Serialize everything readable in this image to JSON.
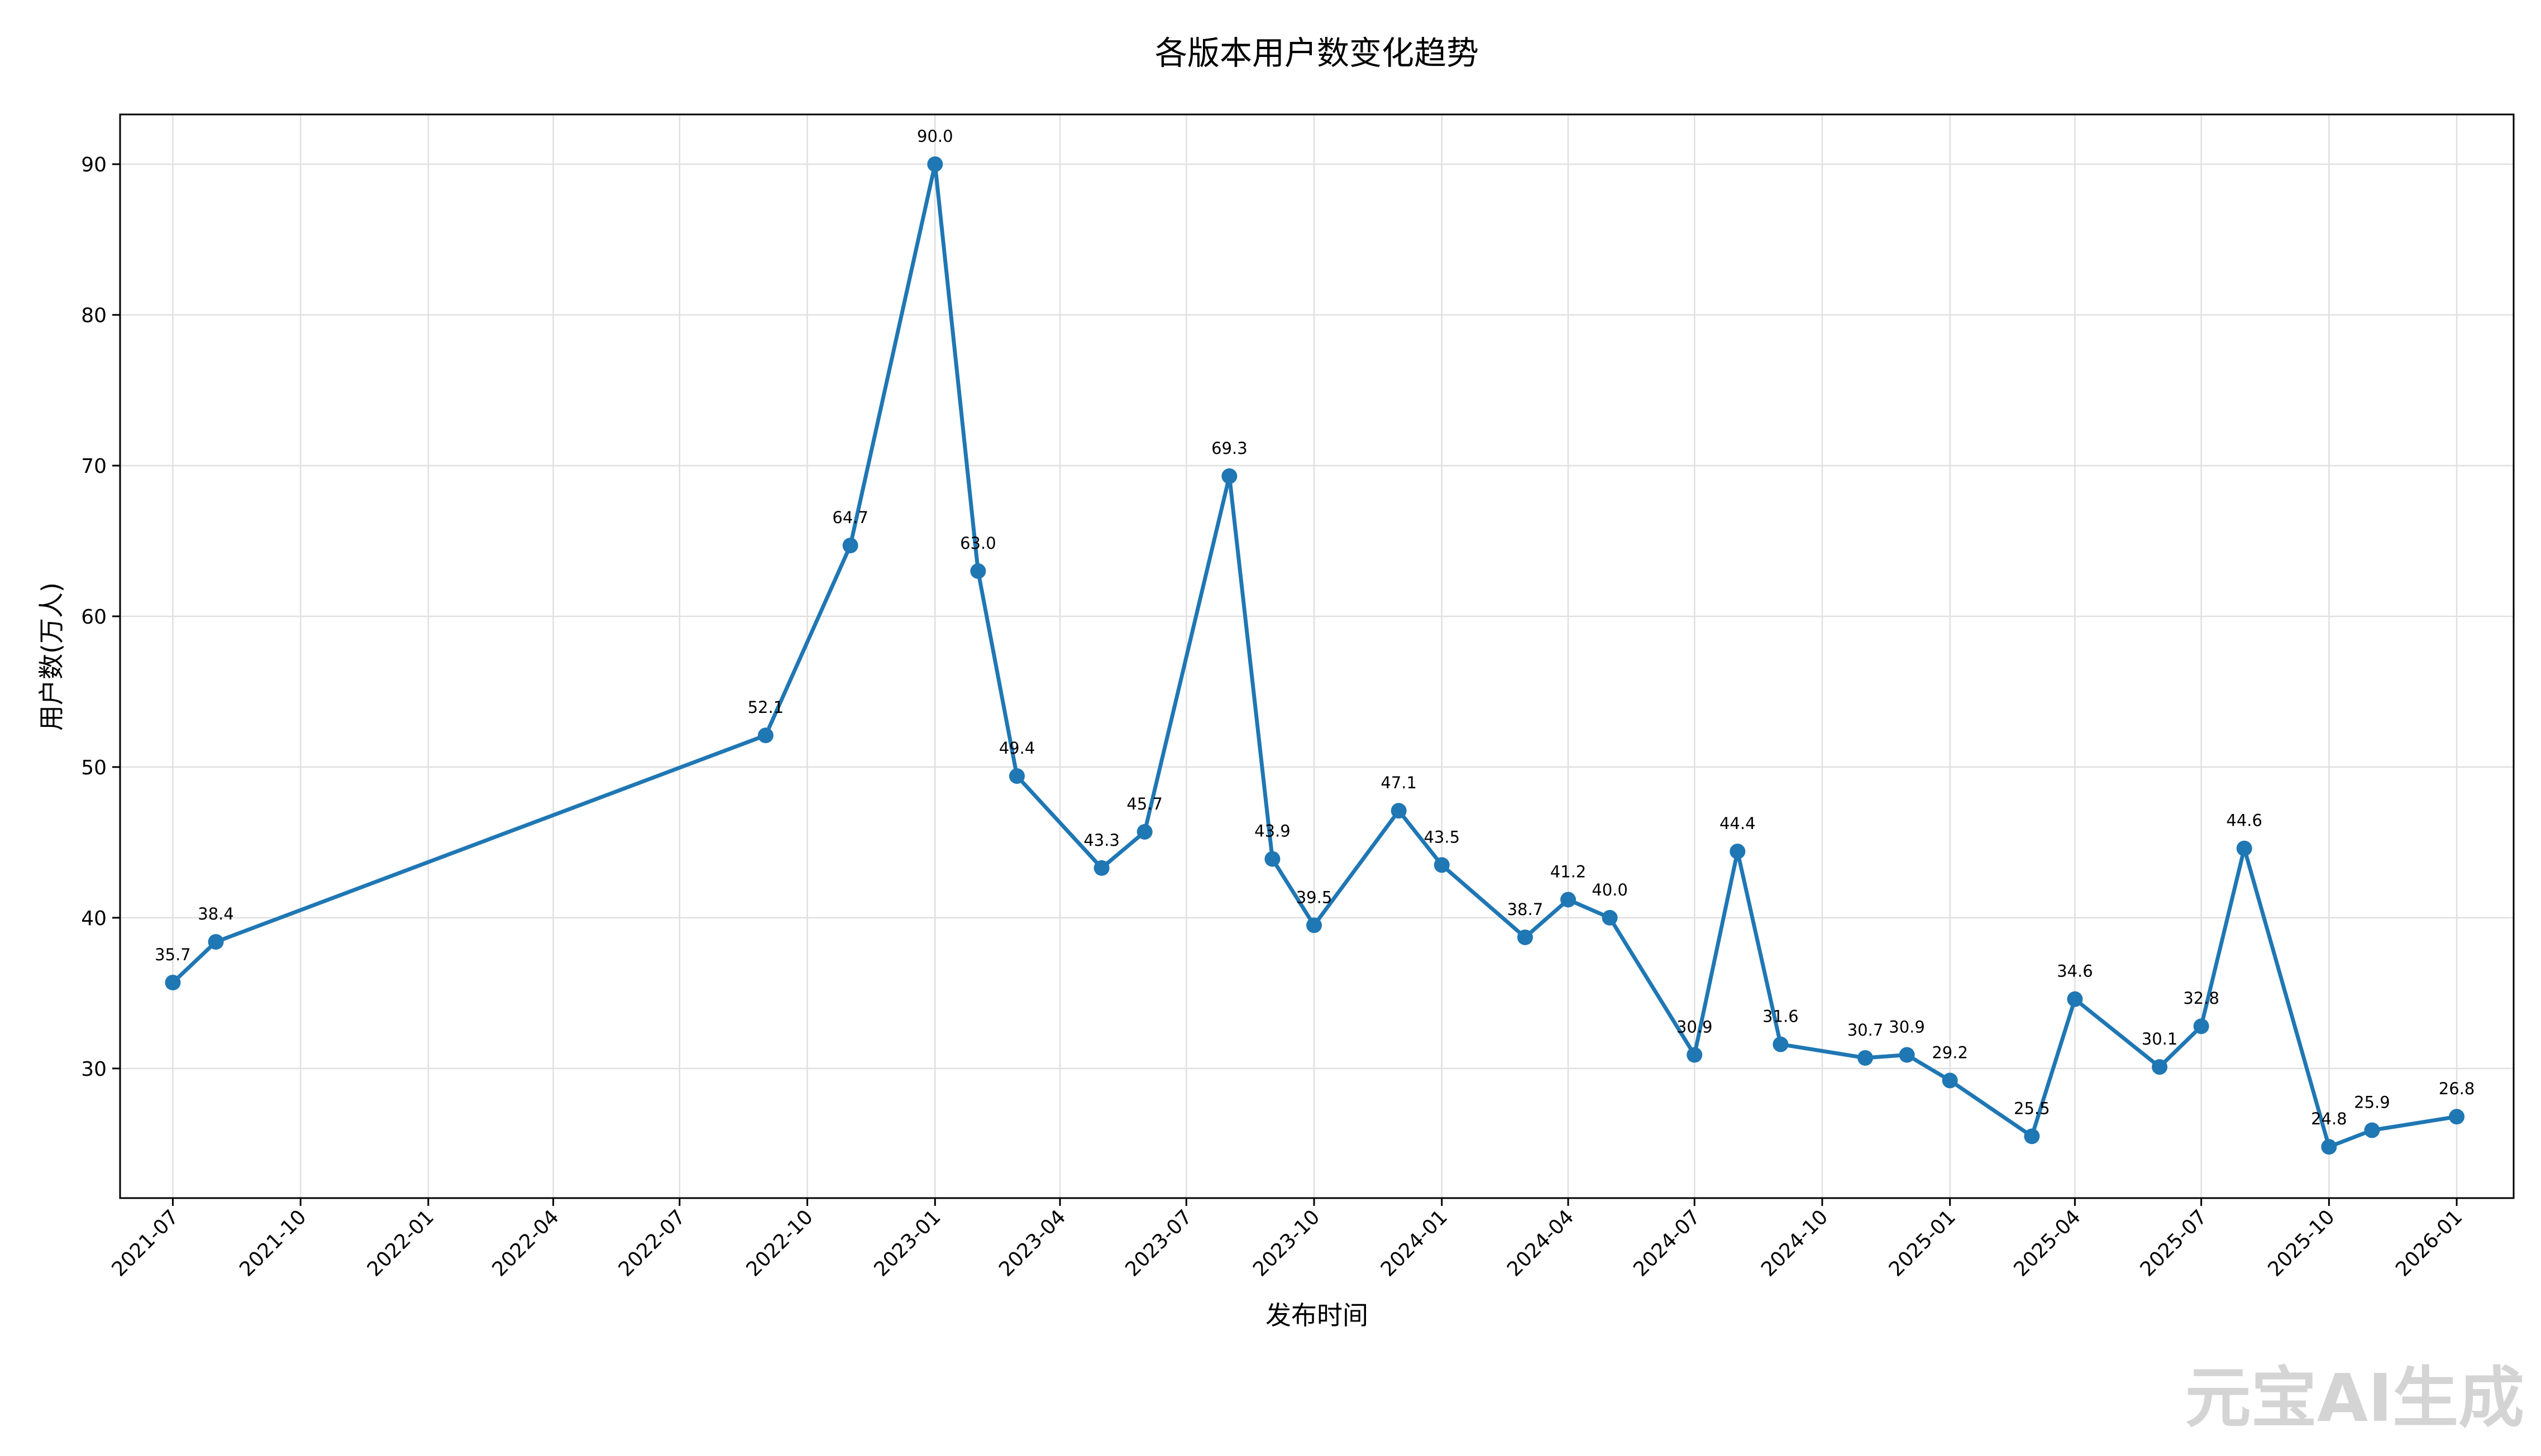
{
  "watermark": "元宝AI生成",
  "chart_data": {
    "type": "line",
    "title": "各版本用户数变化趋势",
    "xlabel": "发布时间",
    "ylabel": "用户数(万人)",
    "x_axis": "date",
    "xlim": [
      "2021-05-24",
      "2026-02-11"
    ],
    "ylim": [
      21.4,
      93.3
    ],
    "grid": true,
    "color": "#1f77b4",
    "x_ticks": [
      "2021-07",
      "2021-10",
      "2022-01",
      "2022-04",
      "2022-07",
      "2022-10",
      "2023-01",
      "2023-04",
      "2023-07",
      "2023-10",
      "2024-01",
      "2024-04",
      "2024-07",
      "2024-10",
      "2025-01",
      "2025-04",
      "2025-07",
      "2025-10",
      "2026-01"
    ],
    "y_ticks": [
      30,
      40,
      50,
      60,
      70,
      80,
      90
    ],
    "points": [
      {
        "x": "2021-07-01",
        "y": 35.7
      },
      {
        "x": "2021-08-01",
        "y": 38.4
      },
      {
        "x": "2022-09-01",
        "y": 52.1
      },
      {
        "x": "2022-11-01",
        "y": 64.7
      },
      {
        "x": "2023-01-01",
        "y": 90.0
      },
      {
        "x": "2023-02-01",
        "y": 63.0
      },
      {
        "x": "2023-03-01",
        "y": 49.4
      },
      {
        "x": "2023-05-01",
        "y": 43.3
      },
      {
        "x": "2023-06-01",
        "y": 45.7
      },
      {
        "x": "2023-08-01",
        "y": 69.3
      },
      {
        "x": "2023-09-01",
        "y": 43.9
      },
      {
        "x": "2023-10-01",
        "y": 39.5
      },
      {
        "x": "2023-12-01",
        "y": 47.1
      },
      {
        "x": "2024-01-01",
        "y": 43.5
      },
      {
        "x": "2024-03-01",
        "y": 38.7
      },
      {
        "x": "2024-04-01",
        "y": 41.2
      },
      {
        "x": "2024-05-01",
        "y": 40.0
      },
      {
        "x": "2024-07-01",
        "y": 30.9
      },
      {
        "x": "2024-08-01",
        "y": 44.4
      },
      {
        "x": "2024-09-01",
        "y": 31.6
      },
      {
        "x": "2024-11-01",
        "y": 30.7
      },
      {
        "x": "2024-12-01",
        "y": 30.9
      },
      {
        "x": "2025-01-01",
        "y": 29.2
      },
      {
        "x": "2025-03-01",
        "y": 25.5
      },
      {
        "x": "2025-04-01",
        "y": 34.6
      },
      {
        "x": "2025-06-01",
        "y": 30.1
      },
      {
        "x": "2025-07-01",
        "y": 32.8
      },
      {
        "x": "2025-08-01",
        "y": 44.6
      },
      {
        "x": "2025-10-01",
        "y": 24.8
      },
      {
        "x": "2025-11-01",
        "y": 25.9
      },
      {
        "x": "2026-01-01",
        "y": 26.8
      }
    ]
  }
}
